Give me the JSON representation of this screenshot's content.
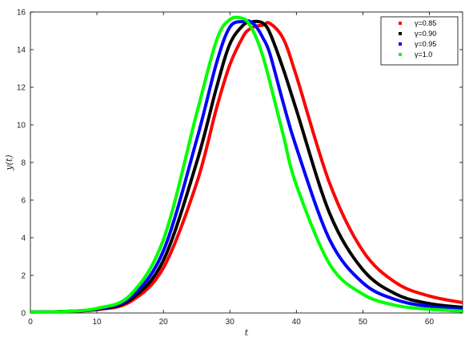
{
  "chart_data": {
    "type": "line",
    "title": "",
    "xlabel": "t",
    "ylabel": "y(t)",
    "xlim": [
      0,
      65
    ],
    "ylim": [
      0,
      16
    ],
    "x_ticks": [
      0,
      10,
      20,
      30,
      40,
      50,
      60
    ],
    "y_ticks": [
      0,
      2,
      4,
      6,
      8,
      10,
      12,
      14,
      16
    ],
    "grid": false,
    "legend_position": "top-right",
    "x": [
      0,
      5,
      10,
      15,
      20,
      25,
      28,
      30,
      32,
      33,
      34,
      35,
      36,
      38,
      40,
      45,
      50,
      55,
      60,
      65
    ],
    "series": [
      {
        "name": "γ=0.85",
        "color": "#ff0000",
        "values": [
          0.05,
          0.08,
          0.18,
          0.6,
          2.4,
          6.9,
          10.9,
          13.2,
          14.7,
          15.1,
          15.25,
          15.3,
          15.4,
          14.6,
          12.6,
          6.9,
          3.3,
          1.6,
          0.9,
          0.55
        ]
      },
      {
        "name": "γ=0.90",
        "color": "#000000",
        "values": [
          0.05,
          0.08,
          0.2,
          0.7,
          2.8,
          8.0,
          12.0,
          14.3,
          15.3,
          15.45,
          15.5,
          15.4,
          14.9,
          13.0,
          10.8,
          5.3,
          2.3,
          1.0,
          0.5,
          0.3
        ]
      },
      {
        "name": "γ=0.95",
        "color": "#0000ff",
        "values": [
          0.05,
          0.08,
          0.22,
          0.82,
          3.3,
          9.2,
          13.3,
          15.2,
          15.5,
          15.5,
          15.2,
          14.6,
          13.8,
          11.2,
          8.8,
          3.9,
          1.6,
          0.7,
          0.35,
          0.2
        ]
      },
      {
        "name": "γ=1.0",
        "color": "#00ff00",
        "values": [
          0.05,
          0.08,
          0.25,
          0.95,
          3.9,
          10.6,
          14.5,
          15.6,
          15.65,
          15.3,
          14.6,
          13.6,
          12.3,
          9.5,
          6.8,
          2.6,
          1.0,
          0.4,
          0.2,
          0.1
        ]
      }
    ]
  }
}
